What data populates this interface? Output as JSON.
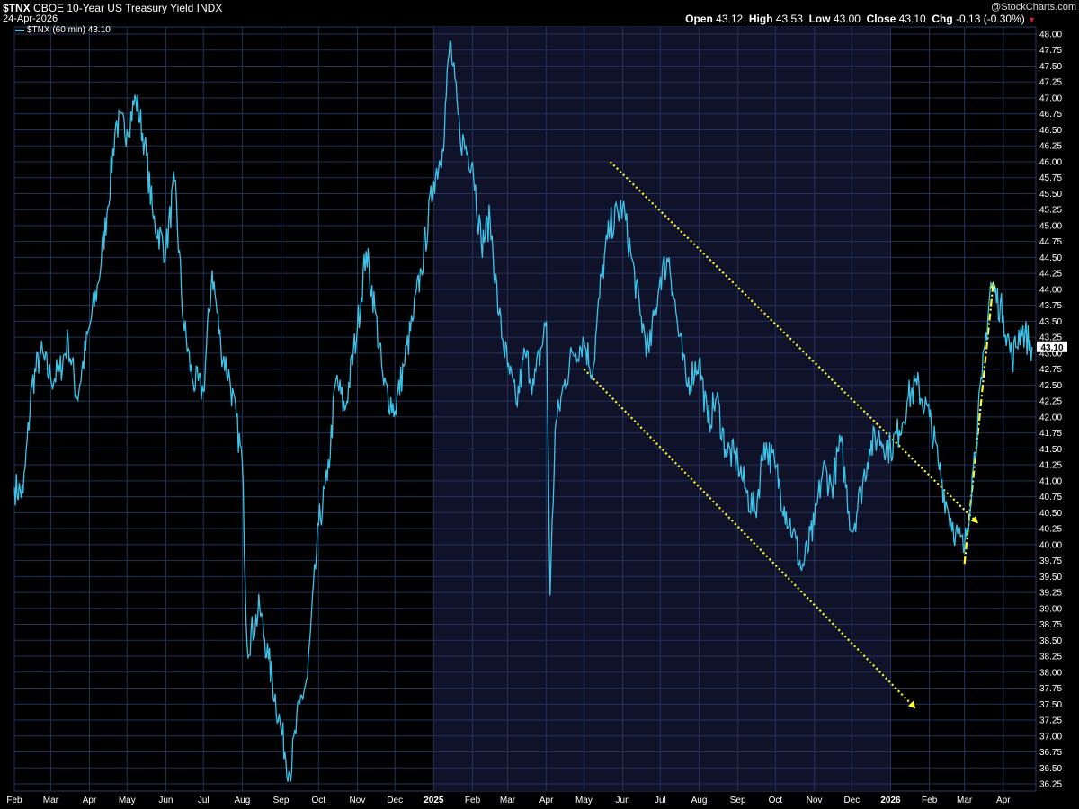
{
  "header": {
    "symbol": "$TNX",
    "description": "CBOE 10-Year US Treasury Yield INDX",
    "date": "24-Apr-2026",
    "brand": "@StockCharts.com",
    "ohlc": [
      {
        "label": "Open",
        "value": "43.12"
      },
      {
        "label": "High",
        "value": "43.53"
      },
      {
        "label": "Low",
        "value": "43.00"
      },
      {
        "label": "Close",
        "value": "43.10"
      },
      {
        "label": "Chg",
        "value": "-0.13 (-0.30%)"
      }
    ],
    "legend": "$TNX (60 min) 43.10"
  },
  "colors": {
    "line": "#3ec3e8",
    "background": "#000000",
    "shaded_background": "#10122a",
    "grid": "#22335a",
    "annotation": "#ffff33",
    "down_marker": "#e0202a"
  },
  "chart_data": {
    "type": "line",
    "series": [
      {
        "name": "$TNX (60 min)",
        "x": [
          "2024-02-01",
          "2024-02-08",
          "2024-02-15",
          "2024-02-22",
          "2024-03-01",
          "2024-03-08",
          "2024-03-15",
          "2024-03-22",
          "2024-04-01",
          "2024-04-08",
          "2024-04-15",
          "2024-04-22",
          "2024-05-01",
          "2024-05-08",
          "2024-05-15",
          "2024-05-22",
          "2024-06-01",
          "2024-06-08",
          "2024-06-15",
          "2024-06-22",
          "2024-07-01",
          "2024-07-08",
          "2024-07-15",
          "2024-07-22",
          "2024-08-01",
          "2024-08-05",
          "2024-08-15",
          "2024-08-22",
          "2024-09-01",
          "2024-09-08",
          "2024-09-16",
          "2024-09-22",
          "2024-10-01",
          "2024-10-08",
          "2024-10-15",
          "2024-10-22",
          "2024-11-01",
          "2024-11-08",
          "2024-11-15",
          "2024-11-22",
          "2024-12-01",
          "2024-12-08",
          "2024-12-15",
          "2024-12-22",
          "2025-01-01",
          "2025-01-08",
          "2025-01-14",
          "2025-01-22",
          "2025-02-01",
          "2025-02-08",
          "2025-02-15",
          "2025-02-22",
          "2025-03-01",
          "2025-03-08",
          "2025-03-15",
          "2025-03-22",
          "2025-04-01",
          "2025-04-04",
          "2025-04-08",
          "2025-04-15",
          "2025-04-22",
          "2025-05-01",
          "2025-05-08",
          "2025-05-15",
          "2025-05-22",
          "2025-06-01",
          "2025-06-08",
          "2025-06-15",
          "2025-06-22",
          "2025-07-01",
          "2025-07-08",
          "2025-07-15",
          "2025-07-22",
          "2025-08-01",
          "2025-08-08",
          "2025-08-15",
          "2025-08-22",
          "2025-09-01",
          "2025-09-08",
          "2025-09-15",
          "2025-09-22",
          "2025-10-01",
          "2025-10-08",
          "2025-10-15",
          "2025-10-22",
          "2025-11-01",
          "2025-11-08",
          "2025-11-15",
          "2025-11-22",
          "2025-12-01",
          "2025-12-08",
          "2025-12-15",
          "2025-12-22",
          "2026-01-01",
          "2026-01-08",
          "2026-01-15",
          "2026-01-22",
          "2026-02-01",
          "2026-02-08",
          "2026-02-15",
          "2026-02-22",
          "2026-03-01",
          "2026-03-08",
          "2026-03-15",
          "2026-03-22",
          "2026-04-01",
          "2026-04-08",
          "2026-04-15",
          "2026-04-24"
        ],
        "values": [
          40.9,
          40.8,
          42.5,
          43.0,
          42.6,
          42.7,
          43.2,
          42.3,
          43.4,
          44.1,
          45.2,
          46.6,
          46.5,
          47.0,
          46.3,
          45.1,
          44.6,
          45.7,
          43.5,
          42.6,
          42.4,
          44.3,
          43.1,
          42.6,
          41.3,
          38.4,
          39.0,
          38.2,
          37.1,
          36.4,
          37.5,
          37.9,
          40.3,
          41.0,
          42.6,
          42.1,
          43.4,
          44.6,
          43.7,
          42.5,
          42.1,
          42.8,
          43.5,
          44.3,
          45.7,
          46.2,
          47.9,
          46.4,
          46.0,
          44.7,
          45.1,
          43.6,
          42.8,
          42.2,
          43.0,
          42.5,
          43.5,
          39.2,
          41.8,
          42.5,
          43.0,
          43.2,
          42.7,
          44.2,
          45.0,
          45.3,
          44.5,
          43.6,
          43.0,
          44.2,
          44.5,
          43.4,
          42.5,
          42.9,
          41.9,
          42.3,
          41.5,
          41.3,
          40.8,
          40.5,
          41.6,
          41.2,
          40.6,
          40.2,
          39.6,
          40.3,
          41.2,
          40.9,
          41.6,
          40.2,
          40.8,
          41.5,
          41.7,
          41.5,
          41.8,
          42.3,
          42.5,
          42.0,
          41.3,
          40.6,
          40.2,
          39.9,
          41.2,
          42.6,
          44.1,
          43.6,
          42.9,
          43.4,
          43.1
        ]
      }
    ],
    "x_ticks": [
      "Feb",
      "Mar",
      "Apr",
      "May",
      "Jun",
      "Jul",
      "Aug",
      "Sep",
      "Oct",
      "Nov",
      "Dec",
      "2025",
      "Feb",
      "Mar",
      "Apr",
      "May",
      "Jun",
      "Jul",
      "Aug",
      "Sep",
      "Oct",
      "Nov",
      "Dec",
      "2026",
      "Feb",
      "Mar",
      "Apr"
    ],
    "y_ticks": [
      "48.00",
      "47.75",
      "47.50",
      "47.25",
      "47.00",
      "46.75",
      "46.50",
      "46.25",
      "46.00",
      "45.75",
      "45.50",
      "45.25",
      "45.00",
      "44.75",
      "44.50",
      "44.25",
      "44.00",
      "43.75",
      "43.50",
      "43.25",
      "43.00",
      "42.75",
      "42.50",
      "42.25",
      "42.00",
      "41.75",
      "41.50",
      "41.25",
      "41.00",
      "40.75",
      "40.50",
      "40.25",
      "40.00",
      "39.75",
      "39.50",
      "39.25",
      "39.00",
      "38.75",
      "38.50",
      "38.25",
      "38.00",
      "37.75",
      "37.50",
      "37.25",
      "37.00",
      "36.75",
      "36.50",
      "36.25"
    ],
    "ylim": [
      36.1,
      48.15
    ],
    "last_value_label": "43.10",
    "grid": true,
    "annotations": [
      {
        "type": "dotted-line",
        "from": {
          "x": "2025-05-22",
          "y": 46.0
        },
        "to": {
          "x": "2026-03-11",
          "y": 40.35
        },
        "arrow": true
      },
      {
        "type": "dotted-line",
        "from": {
          "x": "2025-05-01",
          "y": 42.75
        },
        "to": {
          "x": "2026-01-20",
          "y": 37.45
        },
        "arrow": true
      },
      {
        "type": "dash-dot-line",
        "from": {
          "x": "2026-03-01",
          "y": 39.7
        },
        "to": {
          "x": "2026-03-24",
          "y": 44.1
        },
        "arrow": true
      }
    ]
  }
}
